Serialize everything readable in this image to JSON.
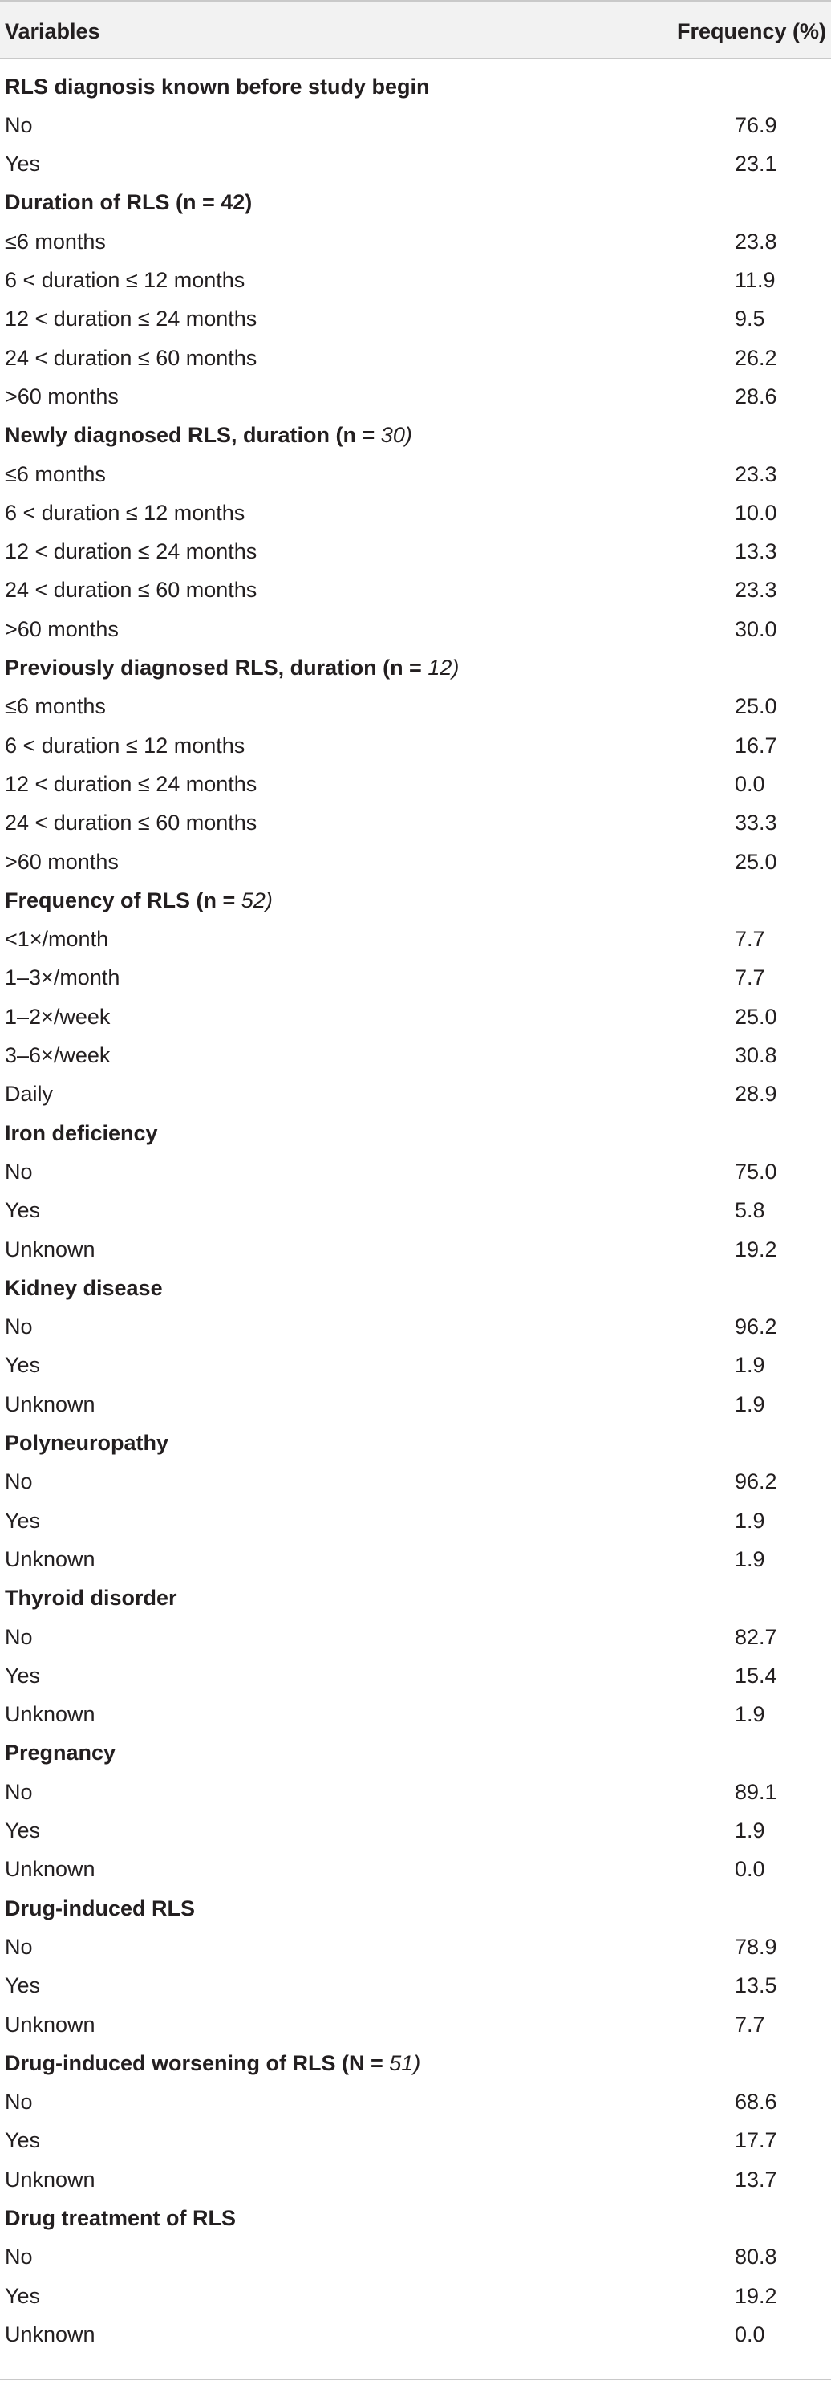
{
  "header": {
    "variables": "Variables",
    "frequency": "Frequency (%)"
  },
  "rows": [
    {
      "type": "section",
      "label": "RLS diagnosis known before study begin",
      "n": ""
    },
    {
      "type": "item",
      "label": "No",
      "value": "76.9"
    },
    {
      "type": "item",
      "label": "Yes",
      "value": "23.1"
    },
    {
      "type": "section",
      "label": "Duration of RLS (n = 42)",
      "n": ""
    },
    {
      "type": "item",
      "label": "≤6 months",
      "value": "23.8"
    },
    {
      "type": "item",
      "label": "6 < duration ≤ 12 months",
      "value": "11.9"
    },
    {
      "type": "item",
      "label": "12 < duration ≤ 24 months",
      "value": "9.5"
    },
    {
      "type": "item",
      "label": "24 < duration ≤ 60 months",
      "value": "26.2"
    },
    {
      "type": "item",
      "label": ">60 months",
      "value": "28.6"
    },
    {
      "type": "section",
      "label": "Newly diagnosed RLS, duration (n = ",
      "n": "30)"
    },
    {
      "type": "item",
      "label": "≤6 months",
      "value": "23.3"
    },
    {
      "type": "item",
      "label": "6 < duration ≤ 12 months",
      "value": "10.0"
    },
    {
      "type": "item",
      "label": "12 < duration ≤ 24 months",
      "value": "13.3"
    },
    {
      "type": "item",
      "label": "24 < duration ≤ 60 months",
      "value": "23.3"
    },
    {
      "type": "item",
      "label": ">60 months",
      "value": "30.0"
    },
    {
      "type": "section",
      "label": "Previously diagnosed RLS, duration (n = ",
      "n": "12)"
    },
    {
      "type": "item",
      "label": "≤6 months",
      "value": "25.0"
    },
    {
      "type": "item",
      "label": "6 < duration ≤ 12 months",
      "value": "16.7"
    },
    {
      "type": "item",
      "label": "12 < duration ≤ 24 months",
      "value": "0.0"
    },
    {
      "type": "item",
      "label": "24 < duration ≤ 60 months",
      "value": "33.3"
    },
    {
      "type": "item",
      "label": ">60 months",
      "value": "25.0"
    },
    {
      "type": "section",
      "label": "Frequency of RLS (n = ",
      "n": "52)"
    },
    {
      "type": "item",
      "label": "<1×/month",
      "value": "7.7"
    },
    {
      "type": "item",
      "label": "1–3×/month",
      "value": "7.7"
    },
    {
      "type": "item",
      "label": "1–2×/week",
      "value": "25.0"
    },
    {
      "type": "item",
      "label": "3–6×/week",
      "value": "30.8"
    },
    {
      "type": "item",
      "label": "Daily",
      "value": "28.9"
    },
    {
      "type": "section",
      "label": "Iron deficiency",
      "n": ""
    },
    {
      "type": "item",
      "label": "No",
      "value": "75.0"
    },
    {
      "type": "item",
      "label": "Yes",
      "value": "5.8"
    },
    {
      "type": "item",
      "label": "Unknown",
      "value": "19.2"
    },
    {
      "type": "section",
      "label": "Kidney disease",
      "n": ""
    },
    {
      "type": "item",
      "label": "No",
      "value": "96.2"
    },
    {
      "type": "item",
      "label": "Yes",
      "value": "1.9"
    },
    {
      "type": "item",
      "label": "Unknown",
      "value": "1.9"
    },
    {
      "type": "section",
      "label": "Polyneuropathy",
      "n": ""
    },
    {
      "type": "item",
      "label": "No",
      "value": "96.2"
    },
    {
      "type": "item",
      "label": "Yes",
      "value": "1.9"
    },
    {
      "type": "item",
      "label": "Unknown",
      "value": "1.9"
    },
    {
      "type": "section",
      "label": "Thyroid disorder",
      "n": ""
    },
    {
      "type": "item",
      "label": "No",
      "value": "82.7"
    },
    {
      "type": "item",
      "label": "Yes",
      "value": "15.4"
    },
    {
      "type": "item",
      "label": "Unknown",
      "value": "1.9"
    },
    {
      "type": "section",
      "label": "Pregnancy",
      "n": ""
    },
    {
      "type": "item",
      "label": "No",
      "value": "89.1"
    },
    {
      "type": "item",
      "label": "Yes",
      "value": "1.9"
    },
    {
      "type": "item",
      "label": "Unknown",
      "value": "0.0"
    },
    {
      "type": "section",
      "label": "Drug-induced RLS",
      "n": ""
    },
    {
      "type": "item",
      "label": "No",
      "value": "78.9"
    },
    {
      "type": "item",
      "label": "Yes",
      "value": "13.5"
    },
    {
      "type": "item",
      "label": "Unknown",
      "value": "7.7"
    },
    {
      "type": "section",
      "label": "Drug-induced worsening of RLS (N = ",
      "n": "51)"
    },
    {
      "type": "item",
      "label": "No",
      "value": "68.6"
    },
    {
      "type": "item",
      "label": "Yes",
      "value": "17.7"
    },
    {
      "type": "item",
      "label": "Unknown",
      "value": "13.7"
    },
    {
      "type": "section",
      "label": "Drug treatment of RLS",
      "n": ""
    },
    {
      "type": "item",
      "label": "No",
      "value": "80.8"
    },
    {
      "type": "item",
      "label": "Yes",
      "value": "19.2"
    },
    {
      "type": "item",
      "label": "Unknown",
      "value": "0.0"
    }
  ]
}
